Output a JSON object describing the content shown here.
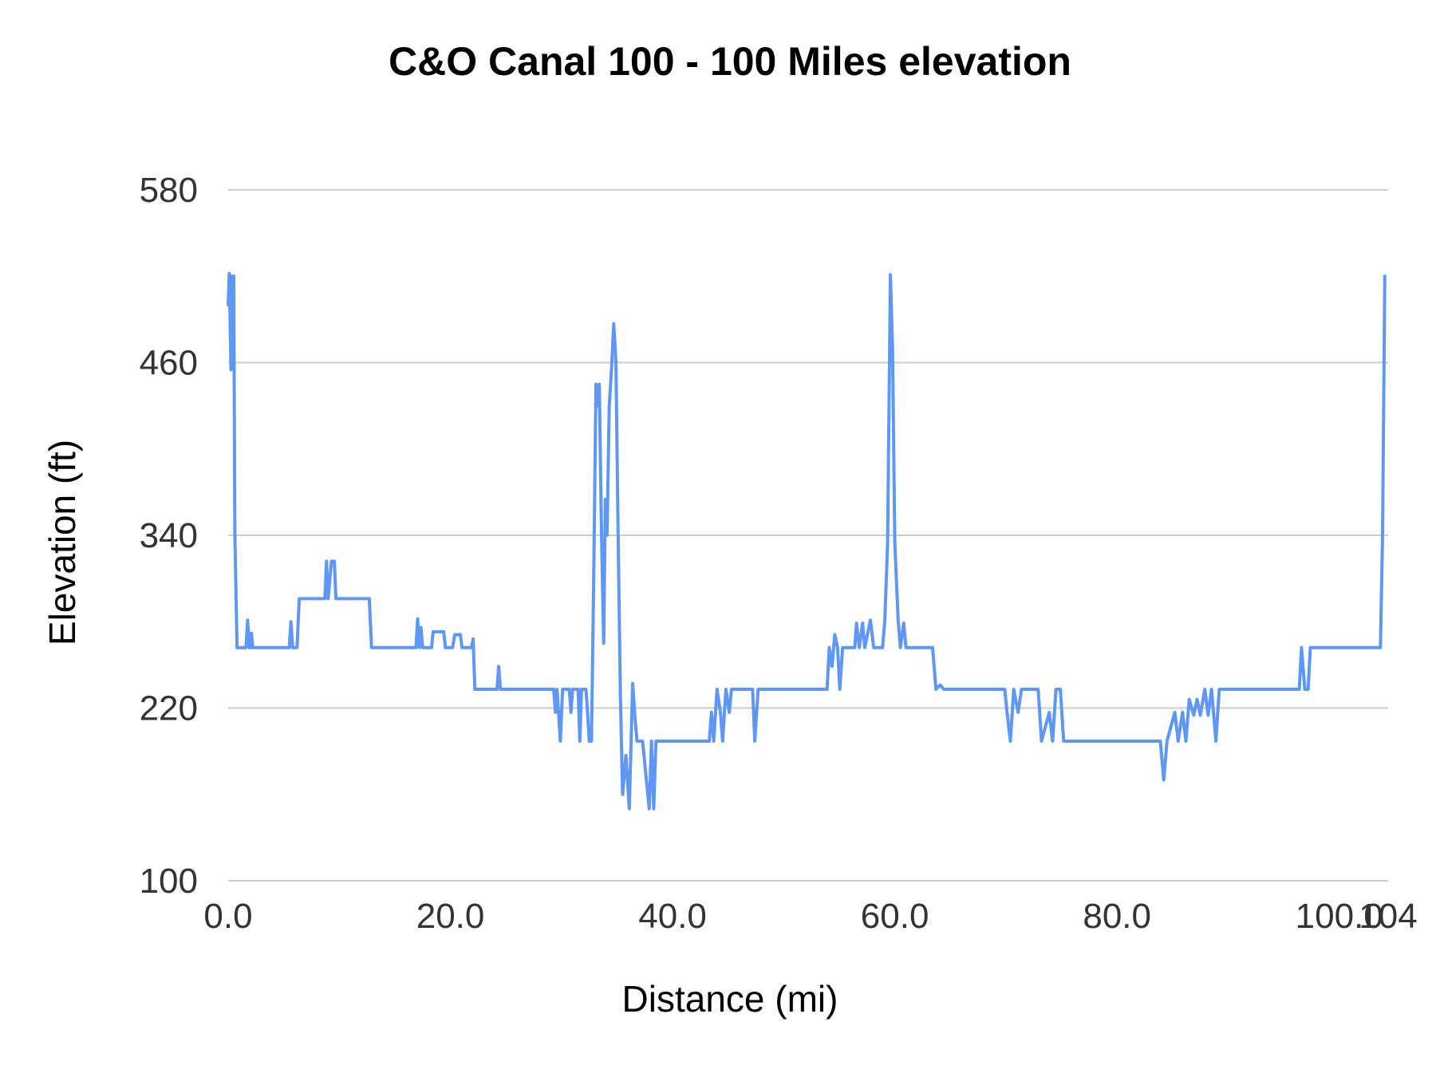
{
  "chart_data": {
    "type": "line",
    "title": "C&O Canal 100 - 100 Miles elevation",
    "xlabel": "Distance (mi)",
    "ylabel": "Elevation (ft)",
    "xlim": [
      0,
      104.4
    ],
    "ylim": [
      100,
      580
    ],
    "grid": "horizontal",
    "legend": "none",
    "line_color": "#5e97f6",
    "gridline_color": "#cccccc",
    "tick_color": "#333333",
    "y_ticks": [
      {
        "value": 100,
        "label": "100"
      },
      {
        "value": 220,
        "label": "220"
      },
      {
        "value": 340,
        "label": "340"
      },
      {
        "value": 460,
        "label": "460"
      },
      {
        "value": 580,
        "label": "580"
      }
    ],
    "x_ticks": [
      {
        "value": 0,
        "label": "0.0"
      },
      {
        "value": 20,
        "label": "20.0"
      },
      {
        "value": 40,
        "label": "40.0"
      },
      {
        "value": 60,
        "label": "60.0"
      },
      {
        "value": 80,
        "label": "80.0"
      },
      {
        "value": 100,
        "label": "100.0"
      },
      {
        "value": 104.4,
        "label": "104"
      }
    ],
    "points": [
      [
        0.0,
        500
      ],
      [
        0.1,
        522
      ],
      [
        0.25,
        455
      ],
      [
        0.35,
        520
      ],
      [
        0.5,
        520
      ],
      [
        0.6,
        340
      ],
      [
        0.8,
        262
      ],
      [
        1.6,
        262
      ],
      [
        1.75,
        281
      ],
      [
        1.9,
        262
      ],
      [
        2.05,
        262
      ],
      [
        2.1,
        272
      ],
      [
        2.2,
        262
      ],
      [
        5.5,
        262
      ],
      [
        5.65,
        280
      ],
      [
        5.8,
        262
      ],
      [
        6.2,
        262
      ],
      [
        6.4,
        296
      ],
      [
        8.7,
        296
      ],
      [
        8.85,
        322
      ],
      [
        9.0,
        296
      ],
      [
        9.3,
        322
      ],
      [
        9.55,
        322
      ],
      [
        9.7,
        296
      ],
      [
        12.7,
        296
      ],
      [
        12.9,
        262
      ],
      [
        16.9,
        262
      ],
      [
        17.05,
        282
      ],
      [
        17.2,
        262
      ],
      [
        17.35,
        276
      ],
      [
        17.5,
        262
      ],
      [
        18.3,
        262
      ],
      [
        18.45,
        273
      ],
      [
        19.4,
        273
      ],
      [
        19.55,
        262
      ],
      [
        20.2,
        262
      ],
      [
        20.4,
        271
      ],
      [
        20.9,
        271
      ],
      [
        21.05,
        262
      ],
      [
        21.9,
        262
      ],
      [
        22.05,
        268
      ],
      [
        22.2,
        233
      ],
      [
        23.2,
        233
      ],
      [
        24.2,
        233
      ],
      [
        24.35,
        249
      ],
      [
        24.5,
        233
      ],
      [
        29.3,
        233
      ],
      [
        29.45,
        217
      ],
      [
        29.6,
        233
      ],
      [
        29.9,
        197
      ],
      [
        30.1,
        233
      ],
      [
        30.7,
        233
      ],
      [
        30.85,
        217
      ],
      [
        31.0,
        233
      ],
      [
        31.5,
        233
      ],
      [
        31.65,
        197
      ],
      [
        31.8,
        233
      ],
      [
        32.2,
        233
      ],
      [
        32.35,
        217
      ],
      [
        32.5,
        197
      ],
      [
        32.7,
        197
      ],
      [
        32.9,
        310
      ],
      [
        33.1,
        445
      ],
      [
        33.25,
        430
      ],
      [
        33.4,
        445
      ],
      [
        33.6,
        340
      ],
      [
        33.8,
        265
      ],
      [
        33.95,
        365
      ],
      [
        34.1,
        340
      ],
      [
        34.3,
        430
      ],
      [
        34.5,
        455
      ],
      [
        34.7,
        487
      ],
      [
        34.9,
        460
      ],
      [
        35.1,
        340
      ],
      [
        35.3,
        230
      ],
      [
        35.5,
        160
      ],
      [
        35.8,
        187
      ],
      [
        36.1,
        150
      ],
      [
        36.4,
        237
      ],
      [
        36.6,
        215
      ],
      [
        36.8,
        197
      ],
      [
        37.3,
        197
      ],
      [
        37.7,
        165
      ],
      [
        37.9,
        150
      ],
      [
        38.1,
        197
      ],
      [
        38.3,
        150
      ],
      [
        38.5,
        197
      ],
      [
        43.3,
        197
      ],
      [
        43.5,
        217
      ],
      [
        43.7,
        197
      ],
      [
        44.0,
        233
      ],
      [
        44.3,
        217
      ],
      [
        44.5,
        197
      ],
      [
        44.8,
        233
      ],
      [
        45.1,
        217
      ],
      [
        45.3,
        233
      ],
      [
        47.2,
        233
      ],
      [
        47.4,
        197
      ],
      [
        47.7,
        233
      ],
      [
        53.9,
        233
      ],
      [
        54.1,
        262
      ],
      [
        54.35,
        249
      ],
      [
        54.6,
        271
      ],
      [
        54.85,
        262
      ],
      [
        55.05,
        233
      ],
      [
        55.3,
        262
      ],
      [
        56.4,
        262
      ],
      [
        56.55,
        279
      ],
      [
        56.8,
        262
      ],
      [
        57.1,
        279
      ],
      [
        57.3,
        262
      ],
      [
        57.8,
        281
      ],
      [
        58.1,
        262
      ],
      [
        58.9,
        262
      ],
      [
        59.1,
        281
      ],
      [
        59.35,
        335
      ],
      [
        59.6,
        521
      ],
      [
        59.8,
        470
      ],
      [
        60.0,
        335
      ],
      [
        60.3,
        281
      ],
      [
        60.5,
        262
      ],
      [
        60.8,
        279
      ],
      [
        61.0,
        262
      ],
      [
        63.4,
        262
      ],
      [
        63.7,
        233
      ],
      [
        64.1,
        236
      ],
      [
        64.4,
        233
      ],
      [
        69.9,
        233
      ],
      [
        70.1,
        217
      ],
      [
        70.4,
        197
      ],
      [
        70.7,
        233
      ],
      [
        71.1,
        217
      ],
      [
        71.4,
        233
      ],
      [
        72.9,
        233
      ],
      [
        73.2,
        197
      ],
      [
        73.9,
        217
      ],
      [
        74.2,
        197
      ],
      [
        74.5,
        233
      ],
      [
        74.9,
        233
      ],
      [
        75.2,
        197
      ],
      [
        75.9,
        197
      ],
      [
        83.9,
        197
      ],
      [
        84.2,
        170
      ],
      [
        84.5,
        197
      ],
      [
        85.2,
        217
      ],
      [
        85.5,
        197
      ],
      [
        85.9,
        217
      ],
      [
        86.2,
        197
      ],
      [
        86.5,
        226
      ],
      [
        86.9,
        215
      ],
      [
        87.2,
        226
      ],
      [
        87.5,
        215
      ],
      [
        87.9,
        233
      ],
      [
        88.2,
        215
      ],
      [
        88.5,
        233
      ],
      [
        88.9,
        197
      ],
      [
        89.2,
        233
      ],
      [
        90.0,
        233
      ],
      [
        96.4,
        233
      ],
      [
        96.6,
        262
      ],
      [
        96.9,
        233
      ],
      [
        97.2,
        233
      ],
      [
        97.4,
        262
      ],
      [
        98.0,
        262
      ],
      [
        103.4,
        262
      ],
      [
        103.7,
        262
      ],
      [
        103.9,
        340
      ],
      [
        104.1,
        520
      ]
    ]
  }
}
